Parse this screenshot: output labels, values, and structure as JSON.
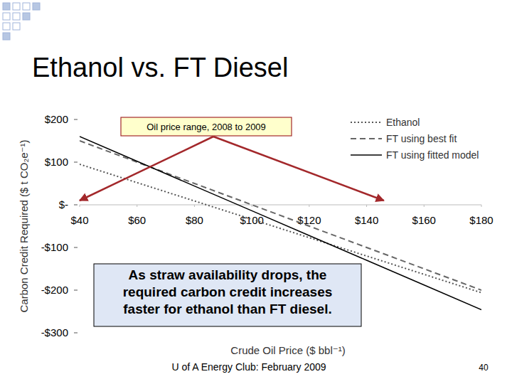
{
  "slide": {
    "title": "Ethanol vs. FT Diesel",
    "footer": "U of A Energy Club: February 2009",
    "page_number": "40"
  },
  "chart_data": {
    "type": "line",
    "x_label": "Crude Oil Price ($ bbl⁻¹)",
    "y_label": "Carbon Credit Required ($ t CO₂e⁻¹)",
    "x": [
      40,
      60,
      80,
      100,
      120,
      140,
      160,
      180
    ],
    "series": [
      {
        "name": "Ethanol",
        "color": "#555555",
        "line_style": "dotted",
        "values": [
          95,
          52,
          9,
          -34,
          -77,
          -120,
          -163,
          -206
        ]
      },
      {
        "name": "FT using best fit",
        "color": "#666666",
        "line_style": "dashed",
        "values": [
          150,
          100,
          50,
          0,
          -50,
          -100,
          -150,
          -200
        ]
      },
      {
        "name": "FT using fitted model",
        "color": "#000000",
        "line_style": "solid",
        "values": [
          160,
          102,
          44,
          -14,
          -72,
          -130,
          -188,
          -246
        ]
      }
    ],
    "xlim": [
      40,
      180
    ],
    "xticks": [
      {
        "value": 40,
        "label": "$40"
      },
      {
        "value": 60,
        "label": "$60"
      },
      {
        "value": 80,
        "label": "$80"
      },
      {
        "value": 100,
        "label": "$100"
      },
      {
        "value": 120,
        "label": "$120"
      },
      {
        "value": 140,
        "label": "$140"
      },
      {
        "value": 160,
        "label": "$160"
      },
      {
        "value": 180,
        "label": "$180"
      }
    ],
    "ylim": [
      -300,
      200
    ],
    "yticks": [
      {
        "value": 200,
        "label": "$200"
      },
      {
        "value": 100,
        "label": "$100"
      },
      {
        "value": 0,
        "label": "$-"
      },
      {
        "value": -100,
        "label": "-$100"
      },
      {
        "value": -200,
        "label": "-$200"
      },
      {
        "value": -300,
        "label": "-$300"
      }
    ],
    "legend": "top-right",
    "grid": false,
    "annotations": [
      {
        "text": "Oil price range, 2008 to 2009",
        "x_range": [
          40,
          146
        ]
      },
      {
        "text": "As straw availability drops, the required carbon credit increases faster for ethanol than FT diesel."
      }
    ]
  }
}
